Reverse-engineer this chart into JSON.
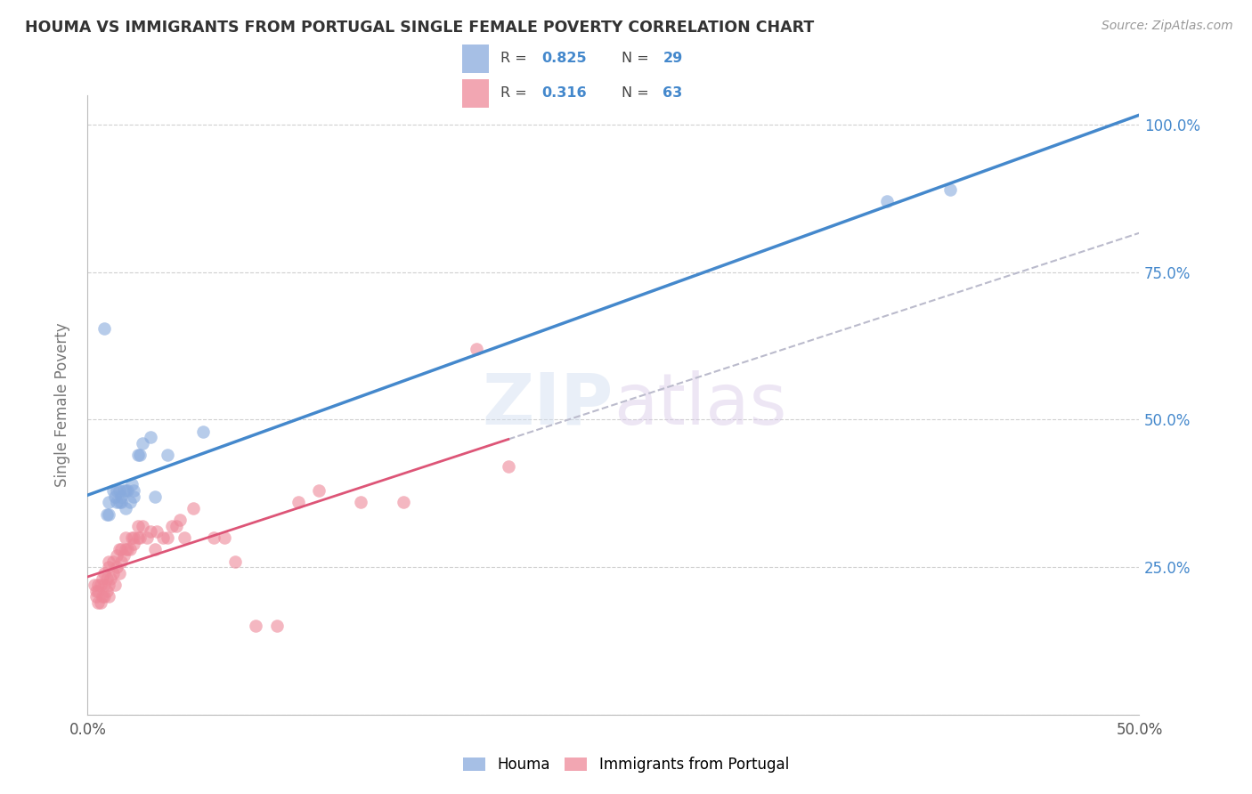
{
  "title": "HOUMA VS IMMIGRANTS FROM PORTUGAL SINGLE FEMALE POVERTY CORRELATION CHART",
  "source": "Source: ZipAtlas.com",
  "ylabel": "Single Female Poverty",
  "xlim": [
    0,
    0.5
  ],
  "ylim": [
    0.0,
    1.05
  ],
  "xticks": [
    0.0,
    0.1,
    0.2,
    0.3,
    0.4,
    0.5
  ],
  "yticks": [
    0.0,
    0.25,
    0.5,
    0.75,
    1.0
  ],
  "ytick_labels_right": [
    "",
    "25.0%",
    "50.0%",
    "75.0%",
    "100.0%"
  ],
  "xtick_labels": [
    "0.0%",
    "",
    "",
    "",
    "",
    "50.0%"
  ],
  "background_color": "#ffffff",
  "grid_color": "#d0d0d0",
  "blue_color": "#88aadd",
  "pink_color": "#ee8899",
  "blue_line_color": "#4488cc",
  "pink_line_color": "#dd5577",
  "dashed_line_color": "#bbbbcc",
  "legend_r1": "0.825",
  "legend_n1": "29",
  "legend_r2": "0.316",
  "legend_n2": "63",
  "blue_scatter_x": [
    0.008,
    0.009,
    0.01,
    0.01,
    0.012,
    0.013,
    0.014,
    0.014,
    0.015,
    0.015,
    0.016,
    0.016,
    0.017,
    0.018,
    0.018,
    0.019,
    0.02,
    0.021,
    0.022,
    0.022,
    0.024,
    0.025,
    0.026,
    0.03,
    0.032,
    0.038,
    0.055,
    0.38,
    0.41
  ],
  "blue_scatter_y": [
    0.655,
    0.34,
    0.34,
    0.36,
    0.38,
    0.37,
    0.36,
    0.38,
    0.36,
    0.38,
    0.36,
    0.37,
    0.38,
    0.35,
    0.38,
    0.38,
    0.36,
    0.39,
    0.37,
    0.38,
    0.44,
    0.44,
    0.46,
    0.47,
    0.37,
    0.44,
    0.48,
    0.87,
    0.89
  ],
  "pink_scatter_x": [
    0.003,
    0.004,
    0.004,
    0.005,
    0.005,
    0.005,
    0.006,
    0.006,
    0.007,
    0.007,
    0.008,
    0.008,
    0.008,
    0.009,
    0.009,
    0.01,
    0.01,
    0.01,
    0.01,
    0.011,
    0.012,
    0.012,
    0.013,
    0.014,
    0.014,
    0.015,
    0.015,
    0.016,
    0.016,
    0.017,
    0.018,
    0.018,
    0.019,
    0.02,
    0.021,
    0.022,
    0.022,
    0.024,
    0.024,
    0.025,
    0.026,
    0.028,
    0.03,
    0.032,
    0.033,
    0.036,
    0.038,
    0.04,
    0.042,
    0.044,
    0.046,
    0.05,
    0.06,
    0.065,
    0.07,
    0.08,
    0.09,
    0.1,
    0.11,
    0.13,
    0.15,
    0.185,
    0.2
  ],
  "pink_scatter_y": [
    0.22,
    0.2,
    0.21,
    0.19,
    0.21,
    0.22,
    0.19,
    0.22,
    0.2,
    0.23,
    0.2,
    0.22,
    0.24,
    0.21,
    0.23,
    0.2,
    0.22,
    0.25,
    0.26,
    0.23,
    0.24,
    0.26,
    0.22,
    0.25,
    0.27,
    0.24,
    0.28,
    0.26,
    0.28,
    0.27,
    0.28,
    0.3,
    0.28,
    0.28,
    0.3,
    0.29,
    0.3,
    0.3,
    0.32,
    0.3,
    0.32,
    0.3,
    0.31,
    0.28,
    0.31,
    0.3,
    0.3,
    0.32,
    0.32,
    0.33,
    0.3,
    0.35,
    0.3,
    0.3,
    0.26,
    0.15,
    0.15,
    0.36,
    0.38,
    0.36,
    0.36,
    0.62,
    0.42
  ]
}
